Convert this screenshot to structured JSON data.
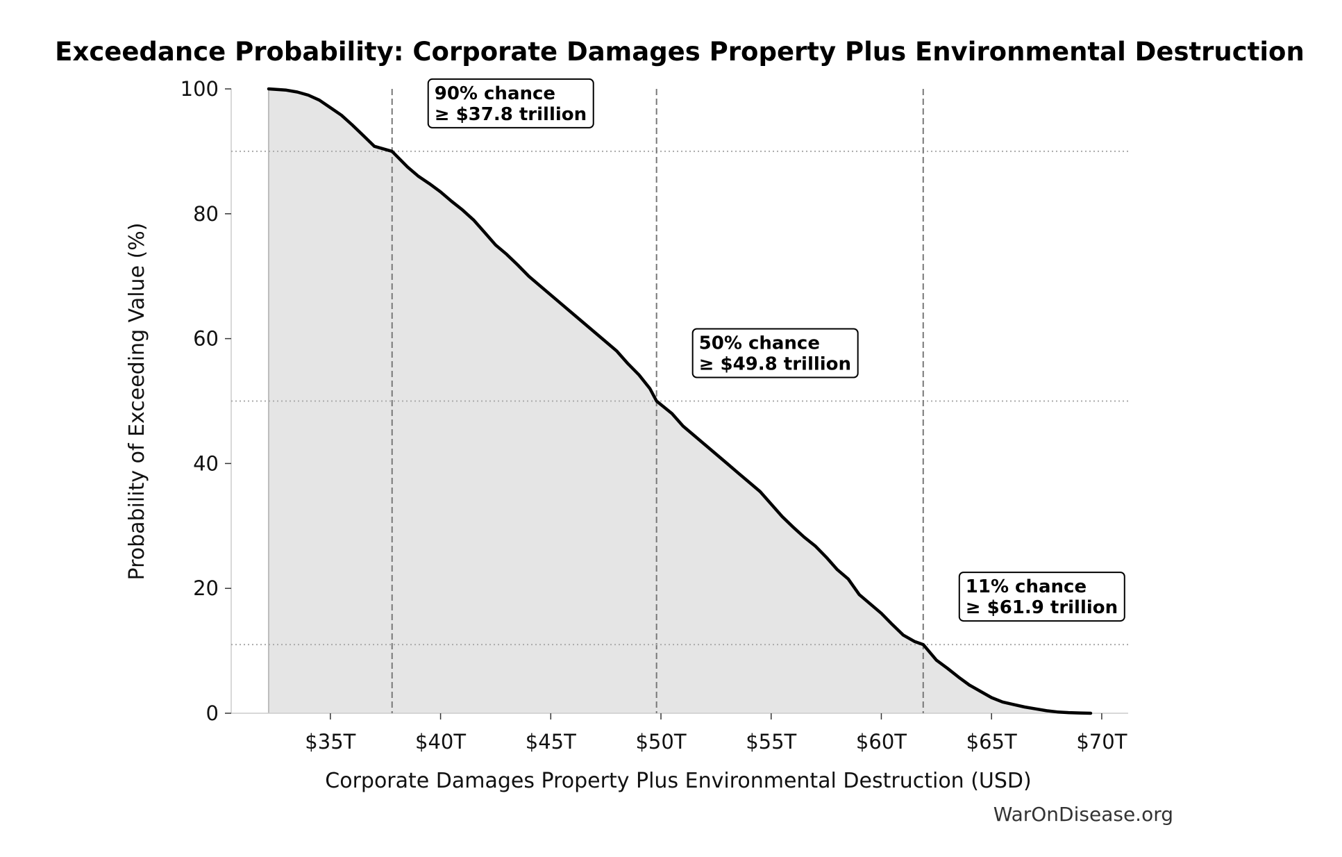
{
  "chart_data": {
    "type": "area",
    "title": "Exceedance Probability: Corporate Damages Property Plus Environmental Destruction",
    "xlabel": "Corporate Damages Property Plus Environmental Destruction (USD)",
    "ylabel": "Probability of Exceeding Value (%)",
    "xlim": [
      30.5,
      71.2
    ],
    "ylim": [
      0,
      100
    ],
    "x_ticks": [
      35,
      40,
      45,
      50,
      55,
      60,
      65,
      70
    ],
    "x_tick_labels": [
      "$35T",
      "$40T",
      "$45T",
      "$50T",
      "$55T",
      "$60T",
      "$65T",
      "$70T"
    ],
    "y_ticks": [
      0,
      20,
      40,
      60,
      80,
      100
    ],
    "y_tick_labels": [
      "0",
      "20",
      "40",
      "60",
      "80",
      "100"
    ],
    "series": [
      {
        "x": [
          32.2,
          33.0,
          33.5,
          34.0,
          34.5,
          35.0,
          35.5,
          36.0,
          36.5,
          37.0,
          37.8,
          38.5,
          39.0,
          39.5,
          40.0,
          40.5,
          41.0,
          41.5,
          42.0,
          42.5,
          43.0,
          43.5,
          44.0,
          44.5,
          45.0,
          45.5,
          46.0,
          46.5,
          47.0,
          47.5,
          48.0,
          48.5,
          49.0,
          49.5,
          49.8,
          50.5,
          51.0,
          51.5,
          52.0,
          52.5,
          53.0,
          53.5,
          54.0,
          54.5,
          55.0,
          55.5,
          56.0,
          56.5,
          57.0,
          57.5,
          58.0,
          58.5,
          59.0,
          59.5,
          60.0,
          60.5,
          61.0,
          61.5,
          61.9,
          62.5,
          63.0,
          63.5,
          64.0,
          64.5,
          65.0,
          65.5,
          66.0,
          66.5,
          67.0,
          67.5,
          68.0,
          68.5,
          69.0,
          69.5
        ],
        "values": [
          100,
          99.8,
          99.5,
          99.0,
          98.2,
          97.0,
          95.8,
          94.2,
          92.5,
          90.8,
          90,
          87.5,
          86.0,
          84.8,
          83.5,
          82.0,
          80.6,
          79.0,
          77.0,
          75.0,
          73.5,
          71.8,
          70.0,
          68.5,
          67.0,
          65.5,
          64.0,
          62.5,
          61.0,
          59.5,
          58.0,
          56.0,
          54.2,
          52.0,
          50,
          48.0,
          46.0,
          44.5,
          43.0,
          41.5,
          40.0,
          38.5,
          37.0,
          35.5,
          33.5,
          31.5,
          29.8,
          28.2,
          26.8,
          25.0,
          23.0,
          21.5,
          19.0,
          17.5,
          16.0,
          14.2,
          12.5,
          11.5,
          11,
          8.5,
          7.2,
          5.8,
          4.5,
          3.5,
          2.5,
          1.8,
          1.4,
          1.0,
          0.7,
          0.4,
          0.2,
          0.1,
          0.05,
          0
        ]
      }
    ],
    "annotations": [
      {
        "x": 37.8,
        "y": 90,
        "line1": "90% chance",
        "line2": "≥ $37.8 trillion"
      },
      {
        "x": 49.8,
        "y": 50,
        "line1": "50% chance",
        "line2": "≥ $49.8 trillion"
      },
      {
        "x": 61.9,
        "y": 11,
        "line1": "11% chance",
        "line2": "≥ $61.9 trillion"
      }
    ],
    "grid": false,
    "fill_color": "#e5e5e5",
    "line_color": "#000000",
    "source": "WarOnDisease.org"
  }
}
